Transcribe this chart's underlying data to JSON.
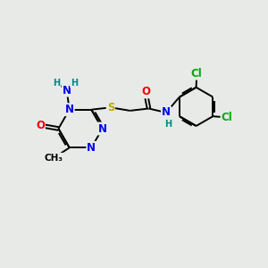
{
  "bg_color": "#e8eae8",
  "atom_colors": {
    "C": "#000000",
    "N": "#0000ee",
    "O": "#ee0000",
    "S": "#bbaa00",
    "Cl": "#00aa00",
    "H": "#008888"
  },
  "bond_color": "#000000",
  "bond_lw": 1.4,
  "font_size_atom": 8.5,
  "font_size_small": 7.0,
  "figsize": [
    3.0,
    3.0
  ],
  "dpi": 100
}
